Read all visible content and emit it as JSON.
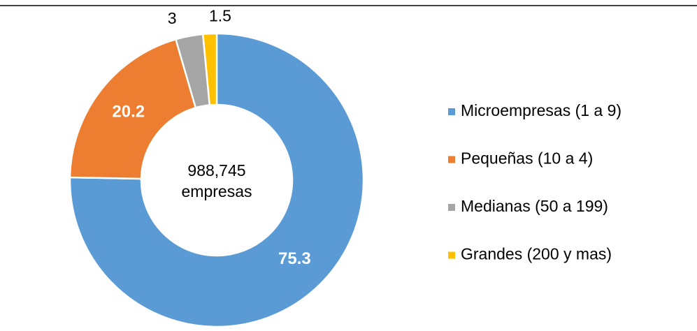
{
  "chart_data": {
    "type": "donut",
    "center_label": [
      "988,745",
      "empresas"
    ],
    "categories": [
      "Microempresas (1 a 9)",
      "Pequeñas (10 a 4)",
      "Medianas (50 a 199)",
      "Grandes (200 y mas)"
    ],
    "values": [
      75.3,
      20.2,
      3.0,
      1.5
    ],
    "colors": [
      "#5b9bd5",
      "#ed7d31",
      "#a5a5a5",
      "#ffc000"
    ],
    "legend": "right"
  }
}
